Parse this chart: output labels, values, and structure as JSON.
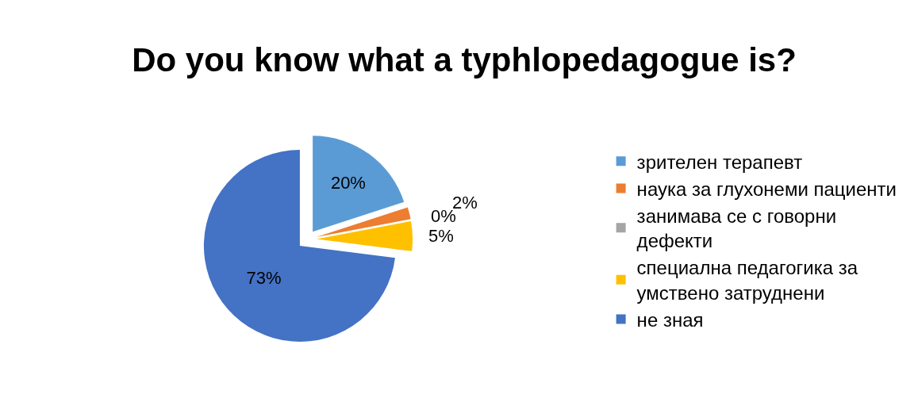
{
  "chart_data": {
    "type": "pie",
    "title": "Do you know what a typhlopedagogue is?",
    "categories": [
      "зрителен терапевт",
      "наука за глухонеми пациенти",
      "занимава се с говорни дефекти",
      "специална педагогика за умствено затруднени",
      "не зная"
    ],
    "values": [
      20,
      2,
      0,
      5,
      73
    ],
    "value_labels": [
      "20%",
      "2%",
      "0%",
      "5%",
      "73%"
    ],
    "colors": [
      "#5b9bd5",
      "#ed7d31",
      "#a5a5a5",
      "#ffc000",
      "#4472c4"
    ],
    "legend": "right"
  }
}
